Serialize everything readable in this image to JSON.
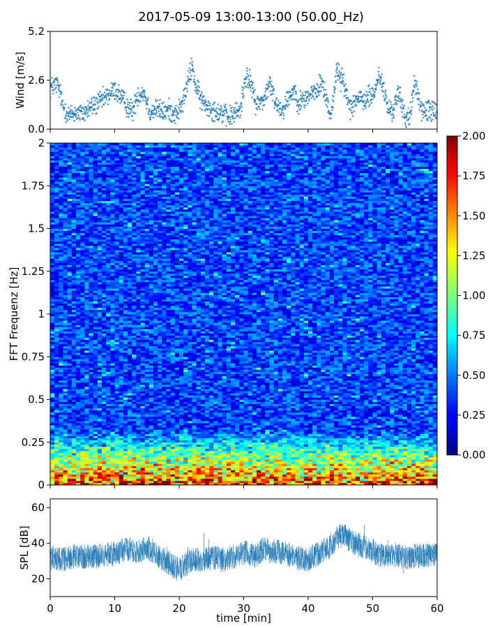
{
  "figure": {
    "title": "2017-05-09 13:00-13:00 (50.00_Hz)"
  },
  "chart_data": [
    {
      "type": "scatter",
      "ylabel": "Wind [m/s]",
      "xlabel": "",
      "xlim": [
        0,
        60
      ],
      "ylim": [
        0,
        5.2
      ],
      "yticks": [
        {
          "v": 0.0,
          "label": "0.0"
        },
        {
          "v": 2.6,
          "label": "2.6"
        },
        {
          "v": 5.2,
          "label": "5.2"
        }
      ],
      "xticks": [
        0,
        10,
        20,
        30,
        40,
        50,
        60
      ],
      "color": "#1f77b4",
      "marker": "+",
      "anchors_x": [
        0,
        1,
        1.5,
        2,
        3,
        4,
        5,
        6,
        7,
        8,
        9,
        10,
        11,
        12,
        12.8,
        13.5,
        14.5,
        15.5,
        16.5,
        17.5,
        18.5,
        19.5,
        20.5,
        21.3,
        22,
        22.6,
        23.5,
        24.5,
        25.5,
        26.5,
        27.5,
        28.5,
        29.5,
        30.3,
        31.2,
        32,
        33.2,
        34,
        35,
        36,
        37,
        37.8,
        38.6,
        39.5,
        40.5,
        41.5,
        42,
        43,
        43.5,
        44.5,
        45.5,
        46.5,
        47.5,
        48.5,
        49.5,
        50.3,
        51,
        51.8,
        52.5,
        53,
        54,
        55,
        55.8,
        56.5,
        57.5,
        58.5,
        59.5,
        60
      ],
      "anchors_y": [
        2.2,
        2.4,
        2.0,
        1.2,
        0.7,
        0.9,
        0.8,
        1.1,
        1.3,
        1.5,
        1.8,
        2.1,
        1.7,
        1.2,
        0.9,
        1.8,
        2.0,
        0.9,
        1.1,
        0.9,
        1.0,
        0.8,
        1.3,
        2.4,
        3.4,
        2.2,
        1.5,
        1.2,
        1.0,
        0.9,
        0.6,
        0.8,
        1.0,
        2.9,
        2.3,
        1.3,
        1.6,
        2.4,
        1.4,
        1.0,
        1.7,
        2.1,
        1.4,
        1.6,
        1.9,
        2.0,
        2.6,
        1.4,
        0.7,
        3.2,
        2.4,
        1.2,
        1.6,
        1.5,
        1.7,
        1.9,
        3.0,
        1.9,
        1.0,
        0.9,
        1.9,
        0.7,
        0.6,
        2.6,
        1.0,
        0.9,
        1.1,
        1.0
      ],
      "scatter": 0.55
    },
    {
      "type": "heatmap",
      "ylabel": "FFT Frequenz [Hz]",
      "xlabel": "",
      "xlim": [
        0,
        60
      ],
      "ylim": [
        0,
        2
      ],
      "yticks": [
        {
          "v": 0,
          "label": "0"
        },
        {
          "v": 0.25,
          "label": "0.25"
        },
        {
          "v": 0.5,
          "label": "0.5"
        },
        {
          "v": 0.75,
          "label": "0.75"
        },
        {
          "v": 1,
          "label": "1"
        },
        {
          "v": 1.25,
          "label": "1.25"
        },
        {
          "v": 1.5,
          "label": "1.5"
        },
        {
          "v": 1.75,
          "label": "1.75"
        },
        {
          "v": 2,
          "label": "2"
        }
      ],
      "colormap": "jet",
      "clim": [
        0,
        2
      ],
      "colorbar_ticks": [
        "0.00",
        "0.25",
        "0.50",
        "0.75",
        "1.00",
        "1.25",
        "1.50",
        "1.75",
        "2.00"
      ],
      "grid_cols": 90,
      "grid_rows": 160,
      "base_level": 0.38,
      "low_freq_level": 1.5
    },
    {
      "type": "line",
      "ylabel": "SPL [dB]",
      "xlabel": "time [min]",
      "xlim": [
        0,
        60
      ],
      "ylim": [
        10,
        65
      ],
      "yticks": [
        {
          "v": 20,
          "label": "20"
        },
        {
          "v": 40,
          "label": "40"
        },
        {
          "v": 60,
          "label": "60"
        }
      ],
      "xticks": [
        0,
        10,
        20,
        30,
        40,
        50,
        60
      ],
      "color": "#1f77b4",
      "anchors_x": [
        0,
        2,
        4,
        6,
        8,
        10,
        12,
        13.5,
        15,
        16.5,
        18,
        19,
        20,
        21,
        22,
        23.5,
        25,
        27,
        29,
        30.5,
        32,
        33,
        34,
        36,
        38,
        40,
        41.5,
        43,
        44.5,
        45.5,
        47,
        49,
        51,
        53,
        55,
        57,
        59,
        60
      ],
      "anchors_y": [
        32,
        31,
        33,
        32,
        33,
        34,
        37,
        35,
        38,
        34,
        30,
        27,
        25,
        28,
        31,
        30,
        32,
        31,
        33,
        35,
        33,
        37,
        36,
        35,
        32,
        31,
        34,
        37,
        43,
        45,
        40,
        38,
        33,
        34,
        32,
        33,
        33,
        34
      ],
      "band": 7
    }
  ]
}
